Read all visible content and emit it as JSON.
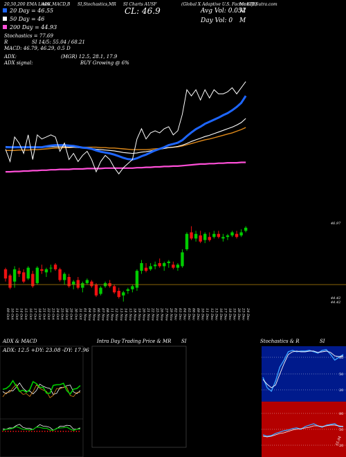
{
  "header": {
    "line1": "20,50,200 EMA Lines",
    "line2": "ADX,MACD,B",
    "line3": "SI,Stochastics,MR",
    "line4": "SI Charts AUSF",
    "line5": "(Global X Adaptive U.S. Factor ETF)",
    "site": "MunafaSutra.com"
  },
  "legend": {
    "ema20": "20 Day = 46.55",
    "ema50": "50 Day = 46",
    "ema200": "200 Day = 44.93",
    "ema20_color": "#1e66ff",
    "ema50_color": "#ffffff",
    "ema200_color": "#ff4fd8"
  },
  "price_info": {
    "close": "CL: 46.9",
    "avg_vol": "Avg Vol: 0.052",
    "avg_vol_unit": "M",
    "day_vol": "Day Vol: 0",
    "day_vol_unit": "M"
  },
  "indicators": {
    "stoch": "Stochastics = 77.69",
    "si": "SI 14/5: 55.04 / 68.21",
    "macd": "MACD: 46.79, 46.29, 0.5 D",
    "adx_label": "ADX:",
    "adx_values": "(MGR) 12.5, 28.1, 17.9",
    "adx_signal": "ADX signal:",
    "buy": "BUY Growing @ 6%"
  },
  "price_axis": {
    "top": "46.97",
    "bottom1": "44.42",
    "bottom2": "44.42"
  },
  "panels": {
    "adx_title": "ADX & MACD",
    "adx_readout": "ADX: 12.5 +DY: 23.08 -DY: 17.96",
    "intra_title": "Intra Day Trading Price & MR",
    "intra_si": "SI",
    "stoch_title": "Stochastics & R",
    "stoch_si": "SI",
    "stoch_ticks": [
      "80",
      "50",
      "20"
    ],
    "rsi_ticks": [
      "80",
      "50",
      "20"
    ],
    "rsi_value": "55.04"
  },
  "colors": {
    "up": "#00cc00",
    "down": "#ee1111",
    "pivot": "#b8860b",
    "ema_orange": "#e08a1a",
    "stoch_bg": "#001a8c",
    "rsi_bg": "#b40000",
    "grid": "#333333"
  },
  "chart_data": {
    "type": "candlestick",
    "dates": [
      "09 Oct",
      "10 Oct",
      "11 Oct",
      "14 Oct",
      "15 Oct",
      "16 Oct",
      "17 Oct",
      "18 Oct",
      "21 Oct",
      "22 Oct",
      "23 Oct",
      "24 Oct",
      "25 Oct",
      "28 Oct",
      "29 Oct",
      "30 Oct",
      "31 Oct",
      "01 Nov",
      "04 Nov",
      "05 Nov",
      "06 Nov",
      "07 Nov",
      "08 Nov",
      "11 Nov",
      "12 Nov",
      "13 Nov",
      "14 Nov",
      "15 Nov",
      "18 Nov",
      "19 Nov",
      "20 Nov",
      "21 Nov",
      "22 Nov",
      "25 Nov",
      "26 Nov",
      "27 Nov",
      "29 Nov",
      "02 Dec",
      "03 Dec",
      "04 Dec",
      "05 Dec",
      "06 Dec",
      "09 Dec",
      "10 Dec",
      "11 Dec",
      "12 Dec",
      "13 Dec",
      "16 Dec",
      "17 Dec",
      "18 Dec",
      "19 Dec",
      "20 Dec",
      "23 Dec",
      "24 Dec"
    ],
    "ohlc": [
      [
        45.55,
        45.6,
        45.15,
        45.25
      ],
      [
        45.35,
        45.4,
        44.9,
        44.95
      ],
      [
        45.15,
        45.65,
        44.95,
        45.55
      ],
      [
        45.5,
        45.6,
        45.3,
        45.4
      ],
      [
        45.45,
        45.55,
        45.1,
        45.15
      ],
      [
        45.25,
        45.65,
        45.2,
        45.6
      ],
      [
        45.4,
        45.5,
        44.95,
        45.0
      ],
      [
        45.1,
        45.65,
        45.05,
        45.6
      ],
      [
        45.55,
        45.7,
        45.4,
        45.5
      ],
      [
        45.45,
        45.6,
        45.3,
        45.55
      ],
      [
        45.6,
        45.7,
        45.45,
        45.6
      ],
      [
        45.7,
        45.75,
        45.5,
        45.55
      ],
      [
        45.55,
        45.6,
        45.15,
        45.2
      ],
      [
        45.2,
        45.45,
        45.05,
        45.4
      ],
      [
        45.3,
        45.4,
        44.95,
        45.0
      ],
      [
        45.05,
        45.2,
        44.9,
        45.15
      ],
      [
        45.2,
        45.3,
        44.9,
        44.95
      ],
      [
        44.95,
        45.15,
        44.8,
        45.1
      ],
      [
        45.1,
        45.25,
        45.05,
        45.2
      ],
      [
        45.15,
        45.2,
        44.95,
        45.0
      ],
      [
        45.05,
        45.1,
        44.65,
        44.7
      ],
      [
        44.75,
        45.0,
        44.7,
        44.95
      ],
      [
        45.0,
        45.15,
        44.95,
        45.1
      ],
      [
        45.1,
        45.2,
        44.95,
        45.0
      ],
      [
        45.0,
        45.05,
        44.75,
        44.8
      ],
      [
        44.85,
        44.95,
        44.6,
        44.65
      ],
      [
        44.7,
        44.85,
        44.5,
        44.8
      ],
      [
        44.85,
        44.95,
        44.75,
        44.9
      ],
      [
        44.9,
        45.05,
        44.8,
        45.0
      ],
      [
        44.95,
        45.55,
        44.85,
        45.5
      ],
      [
        45.5,
        45.85,
        45.4,
        45.75
      ],
      [
        45.6,
        45.75,
        45.45,
        45.5
      ],
      [
        45.55,
        45.75,
        45.5,
        45.65
      ],
      [
        45.65,
        45.8,
        45.55,
        45.7
      ],
      [
        45.75,
        45.9,
        45.6,
        45.65
      ],
      [
        45.65,
        45.8,
        45.5,
        45.75
      ],
      [
        45.75,
        45.85,
        45.6,
        45.8
      ],
      [
        45.7,
        45.8,
        45.55,
        45.6
      ],
      [
        45.6,
        45.75,
        45.5,
        45.7
      ],
      [
        45.65,
        46.2,
        45.6,
        46.1
      ],
      [
        46.2,
        46.75,
        46.15,
        46.7
      ],
      [
        46.75,
        46.95,
        46.5,
        46.55
      ],
      [
        46.55,
        46.8,
        46.45,
        46.7
      ],
      [
        46.65,
        46.8,
        46.4,
        46.45
      ],
      [
        46.5,
        46.75,
        46.4,
        46.7
      ],
      [
        46.6,
        46.75,
        46.45,
        46.5
      ],
      [
        46.6,
        46.8,
        46.55,
        46.7
      ],
      [
        46.7,
        46.8,
        46.55,
        46.6
      ],
      [
        46.55,
        46.7,
        46.45,
        46.6
      ],
      [
        46.6,
        46.7,
        46.5,
        46.65
      ],
      [
        46.65,
        46.8,
        46.6,
        46.75
      ],
      [
        46.7,
        46.8,
        46.55,
        46.6
      ],
      [
        46.65,
        46.85,
        46.6,
        46.75
      ],
      [
        46.8,
        46.95,
        46.75,
        46.9
      ]
    ],
    "ema20": [
      45.3,
      45.3,
      45.3,
      45.3,
      45.3,
      45.3,
      45.3,
      45.3,
      45.3,
      45.32,
      45.34,
      45.35,
      45.35,
      45.35,
      45.34,
      45.33,
      45.31,
      45.29,
      45.28,
      45.26,
      45.22,
      45.19,
      45.17,
      45.15,
      45.12,
      45.08,
      45.04,
      45.01,
      45.0,
      45.03,
      45.08,
      45.12,
      45.17,
      45.22,
      45.26,
      45.3,
      45.35,
      45.38,
      45.41,
      45.47,
      45.57,
      45.66,
      45.74,
      45.8,
      45.87,
      45.92,
      45.97,
      46.02,
      46.08,
      46.13,
      46.2,
      46.28,
      46.38,
      46.55
    ],
    "ema50": [
      45.32,
      45.31,
      45.31,
      45.31,
      45.31,
      45.31,
      45.3,
      45.3,
      45.3,
      45.3,
      45.31,
      45.31,
      45.31,
      45.31,
      45.3,
      45.3,
      45.29,
      45.28,
      45.28,
      45.27,
      45.25,
      45.24,
      45.23,
      45.22,
      45.21,
      45.19,
      45.17,
      45.16,
      45.15,
      45.16,
      45.18,
      45.19,
      45.21,
      45.23,
      45.25,
      45.27,
      45.29,
      45.3,
      45.32,
      45.35,
      45.39,
      45.44,
      45.48,
      45.52,
      45.56,
      45.59,
      45.63,
      45.67,
      45.71,
      45.75,
      45.79,
      45.84,
      45.9,
      46.0
    ],
    "ema200": [
      44.7,
      44.7,
      44.71,
      44.71,
      44.72,
      44.72,
      44.73,
      44.73,
      44.74,
      44.74,
      44.75,
      44.75,
      44.76,
      44.76,
      44.76,
      44.77,
      44.77,
      44.77,
      44.78,
      44.78,
      44.78,
      44.78,
      44.79,
      44.79,
      44.79,
      44.79,
      44.79,
      44.79,
      44.79,
      44.8,
      44.8,
      44.81,
      44.81,
      44.82,
      44.82,
      44.83,
      44.83,
      44.84,
      44.84,
      44.85,
      44.86,
      44.87,
      44.88,
      44.89,
      44.89,
      44.9,
      44.9,
      44.91,
      44.91,
      44.92,
      44.92,
      44.92,
      44.93,
      44.93
    ],
    "ema_orange": [
      45.22,
      45.22,
      45.22,
      45.23,
      45.23,
      45.23,
      45.24,
      45.24,
      45.25,
      45.26,
      45.27,
      45.28,
      45.28,
      45.29,
      45.29,
      45.3,
      45.3,
      45.3,
      45.3,
      45.3,
      45.3,
      45.29,
      45.29,
      45.28,
      45.28,
      45.27,
      45.26,
      45.25,
      45.24,
      45.24,
      45.24,
      45.24,
      45.25,
      45.26,
      45.27,
      45.28,
      45.29,
      45.3,
      45.31,
      45.33,
      45.36,
      45.39,
      45.42,
      45.45,
      45.48,
      45.5,
      45.53,
      45.56,
      45.59,
      45.62,
      45.65,
      45.69,
      45.73,
      45.78
    ]
  }
}
